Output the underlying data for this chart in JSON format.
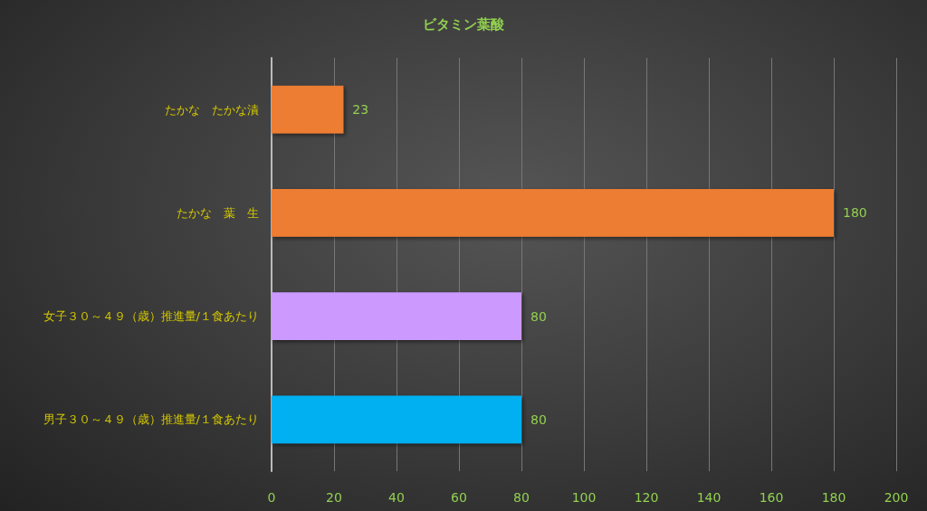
{
  "chart_data": {
    "type": "bar",
    "orientation": "horizontal",
    "title": "ビタミン葉酸",
    "categories": [
      "たかな　たかな漬",
      "たかな　葉　生",
      "女子３０～４９（歳）推進量/１食あたり",
      "男子３０～４９（歳）推進量/１食あたり"
    ],
    "values": [
      23,
      180,
      80,
      80
    ],
    "colors": [
      "#ed7d31",
      "#ed7d31",
      "#cc99ff",
      "#00b0f0"
    ],
    "xlim": [
      0,
      200
    ],
    "xticks": [
      0,
      20,
      40,
      60,
      80,
      100,
      120,
      140,
      160,
      180,
      200
    ],
    "grid": "x",
    "data_labels": true
  }
}
